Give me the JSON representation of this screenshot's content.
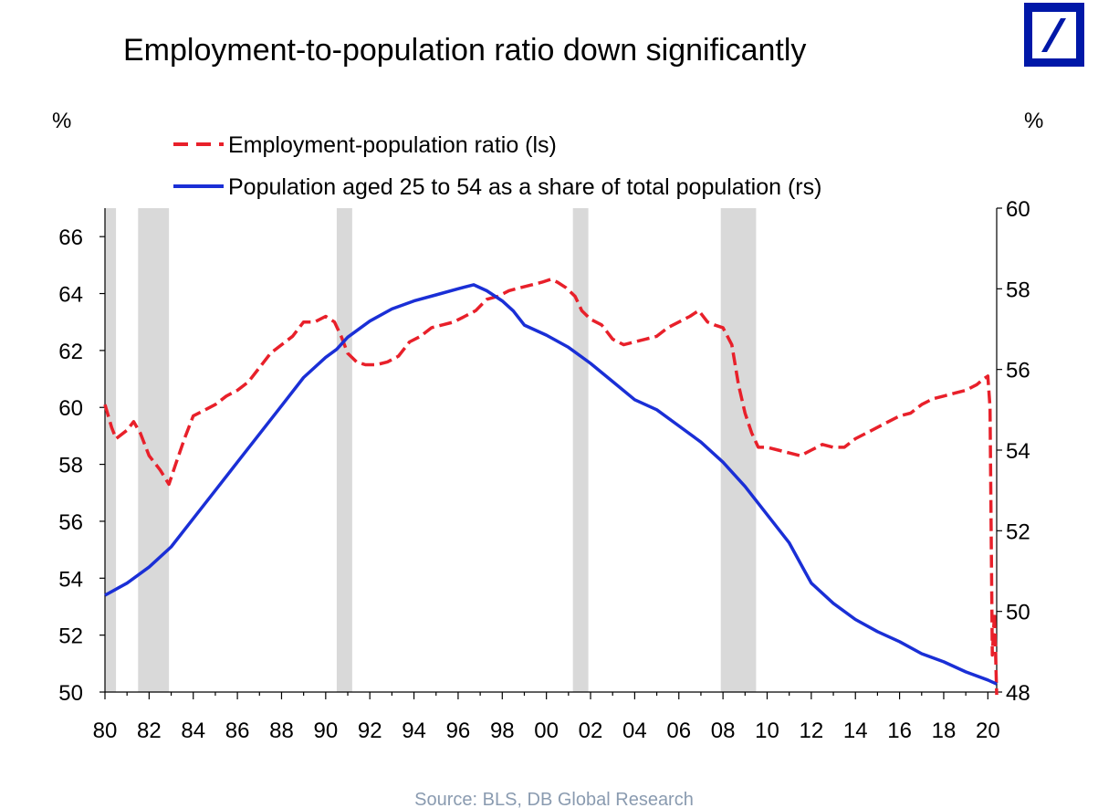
{
  "chart_data": {
    "type": "line",
    "title": "Employment-to-population ratio down significantly",
    "source": "Source: BLS, DB Global Research",
    "left_axis_unit": "%",
    "right_axis_unit": "%",
    "x_tick_labels": [
      "80",
      "82",
      "84",
      "86",
      "88",
      "90",
      "92",
      "94",
      "96",
      "98",
      "00",
      "02",
      "04",
      "06",
      "08",
      "10",
      "12",
      "14",
      "16",
      "18",
      "20"
    ],
    "xlim": [
      1980,
      2020.4
    ],
    "ylim_left": [
      50,
      67
    ],
    "ylim_right": [
      48,
      60
    ],
    "left_ticks": [
      50,
      52,
      54,
      56,
      58,
      60,
      62,
      64,
      66
    ],
    "right_ticks": [
      48,
      50,
      52,
      54,
      56,
      58,
      60
    ],
    "recessions": [
      [
        1980.0,
        1980.5
      ],
      [
        1981.5,
        1982.9
      ],
      [
        1990.5,
        1991.2
      ],
      [
        2001.2,
        2001.9
      ],
      [
        2007.9,
        2009.5
      ]
    ],
    "grid": false,
    "legend_position": "top",
    "colors": {
      "series_1": "#e8202a",
      "series_2": "#1a2fd6",
      "recession": "#d9d9d9",
      "logo": "#0018a8"
    },
    "series": [
      {
        "name": "Employment-population ratio (ls)",
        "axis": "left",
        "style": "dashed",
        "x": [
          1980.0,
          1980.3,
          1980.5,
          1981.0,
          1981.3,
          1981.6,
          1982.0,
          1982.5,
          1982.9,
          1983.2,
          1983.6,
          1984.0,
          1984.5,
          1985.0,
          1985.5,
          1986.0,
          1986.5,
          1987.0,
          1987.5,
          1988.0,
          1988.5,
          1989.0,
          1989.5,
          1990.0,
          1990.4,
          1990.7,
          1991.0,
          1991.4,
          1991.8,
          1992.3,
          1992.8,
          1993.3,
          1993.8,
          1994.3,
          1994.8,
          1995.3,
          1995.8,
          1996.3,
          1996.8,
          1997.3,
          1997.8,
          1998.3,
          1998.8,
          1999.3,
          1999.8,
          2000.2,
          2000.5,
          2000.9,
          2001.3,
          2001.6,
          2002.0,
          2002.5,
          2003.0,
          2003.5,
          2004.0,
          2004.5,
          2005.0,
          2005.5,
          2006.0,
          2006.5,
          2006.9,
          2007.3,
          2007.6,
          2008.0,
          2008.4,
          2008.7,
          2009.0,
          2009.3,
          2009.6,
          2010.0,
          2010.5,
          2011.0,
          2011.5,
          2012.0,
          2012.5,
          2013.0,
          2013.5,
          2014.0,
          2014.5,
          2015.0,
          2015.5,
          2016.0,
          2016.5,
          2017.0,
          2017.5,
          2018.0,
          2018.5,
          2019.0,
          2019.5,
          2019.8,
          2020.0,
          2020.1,
          2020.2,
          2020.3,
          2020.4
        ],
        "values": [
          60.1,
          59.3,
          58.9,
          59.2,
          59.5,
          59.1,
          58.3,
          57.8,
          57.3,
          58.0,
          58.9,
          59.7,
          59.9,
          60.1,
          60.4,
          60.6,
          60.9,
          61.4,
          61.9,
          62.2,
          62.5,
          63.0,
          63.0,
          63.2,
          63.0,
          62.5,
          61.9,
          61.6,
          61.5,
          61.5,
          61.6,
          61.8,
          62.3,
          62.5,
          62.8,
          62.9,
          63.0,
          63.2,
          63.4,
          63.8,
          63.9,
          64.1,
          64.2,
          64.3,
          64.4,
          64.5,
          64.4,
          64.2,
          63.9,
          63.4,
          63.1,
          62.9,
          62.4,
          62.2,
          62.3,
          62.4,
          62.5,
          62.8,
          63.0,
          63.2,
          63.4,
          63.0,
          62.9,
          62.8,
          62.2,
          60.8,
          59.8,
          59.1,
          58.6,
          58.6,
          58.5,
          58.4,
          58.3,
          58.5,
          58.7,
          58.6,
          58.6,
          58.9,
          59.1,
          59.3,
          59.5,
          59.7,
          59.8,
          60.1,
          60.3,
          60.4,
          60.5,
          60.6,
          60.8,
          61.0,
          61.1,
          60.0,
          51.3,
          52.8,
          49.9
        ]
      },
      {
        "name": "Population aged 25 to 54 as a share of total population (rs)",
        "axis": "right",
        "style": "solid",
        "x": [
          1980.0,
          1981.0,
          1982.0,
          1983.0,
          1984.0,
          1985.0,
          1986.0,
          1987.0,
          1988.0,
          1989.0,
          1990.0,
          1990.5,
          1991.0,
          1992.0,
          1993.0,
          1994.0,
          1995.0,
          1996.0,
          1996.7,
          1997.3,
          1998.0,
          1998.5,
          1999.0,
          2000.0,
          2001.0,
          2002.0,
          2003.0,
          2004.0,
          2005.0,
          2006.0,
          2007.0,
          2008.0,
          2009.0,
          2010.0,
          2011.0,
          2011.6,
          2012.0,
          2013.0,
          2014.0,
          2015.0,
          2016.0,
          2017.0,
          2018.0,
          2019.0,
          2020.0,
          2020.4
        ],
        "values": [
          50.4,
          50.7,
          51.1,
          51.6,
          52.3,
          53.0,
          53.7,
          54.4,
          55.1,
          55.8,
          56.3,
          56.5,
          56.8,
          57.2,
          57.5,
          57.7,
          57.85,
          58.0,
          58.1,
          57.95,
          57.7,
          57.45,
          57.1,
          56.85,
          56.55,
          56.15,
          55.7,
          55.25,
          55.0,
          54.6,
          54.2,
          53.7,
          53.1,
          52.4,
          51.7,
          51.1,
          50.7,
          50.2,
          49.8,
          49.5,
          49.25,
          48.95,
          48.75,
          48.5,
          48.3,
          48.2
        ]
      }
    ]
  }
}
